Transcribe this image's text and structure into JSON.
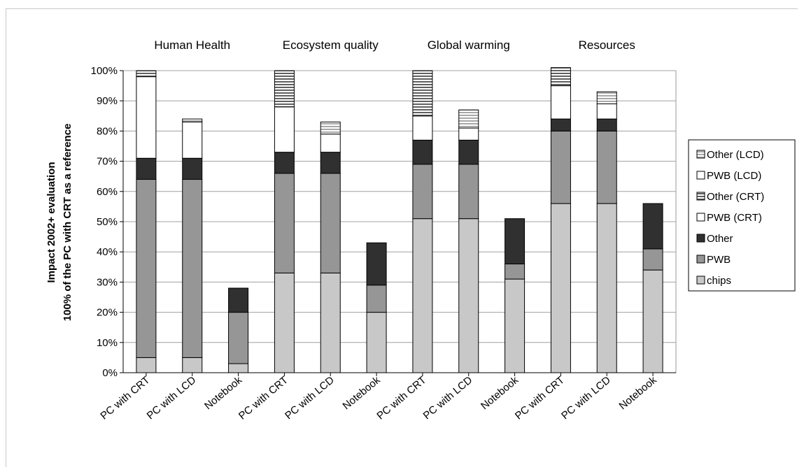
{
  "chart_data": {
    "type": "bar",
    "stacked": true,
    "title": "",
    "ylabel_line1": "Impact 2002+ evaluation",
    "ylabel_line2": "100% of the PC with CRT as a reference",
    "ylim": [
      0,
      100
    ],
    "yticks": [
      "0%",
      "10%",
      "20%",
      "30%",
      "40%",
      "50%",
      "60%",
      "70%",
      "80%",
      "90%",
      "100%"
    ],
    "grid": true,
    "legend_position": "right",
    "groups": [
      "Human Health",
      "Ecosystem quality",
      "Global warming",
      "Resources"
    ],
    "categories": [
      "PC with CRT",
      "PC with LCD",
      "Notebook",
      "PC with CRT",
      "PC with LCD",
      "Notebook",
      "PC with CRT",
      "PC with LCD",
      "Notebook",
      "PC with CRT",
      "PC with LCD",
      "Notebook"
    ],
    "series": [
      {
        "name": "chips",
        "color": "#c8c8c8",
        "values": [
          5,
          5,
          3,
          33,
          33,
          20,
          51,
          51,
          31,
          56,
          56,
          34
        ]
      },
      {
        "name": "PWB",
        "color": "#969696",
        "values": [
          59,
          59,
          17,
          33,
          33,
          9,
          18,
          18,
          5,
          24,
          24,
          7
        ]
      },
      {
        "name": "Other",
        "color": "#303030",
        "values": [
          7,
          7,
          8,
          7,
          7,
          14,
          8,
          8,
          15,
          4,
          4,
          15
        ]
      },
      {
        "name": "PWB (CRT)",
        "color": "#ffffff",
        "values": [
          27,
          0,
          0,
          15,
          0,
          0,
          8,
          0,
          0,
          11,
          0,
          0
        ]
      },
      {
        "name": "Other (CRT)",
        "color": "#808080",
        "pattern": "stripes",
        "values": [
          2,
          0,
          0,
          12,
          0,
          0,
          15,
          0,
          0,
          6,
          0,
          0
        ]
      },
      {
        "name": "PWB (LCD)",
        "color": "#ffffff",
        "values": [
          0,
          12,
          0,
          0,
          6,
          0,
          0,
          4,
          0,
          0,
          5,
          0
        ]
      },
      {
        "name": "Other (LCD)",
        "color": "#b4b4b4",
        "pattern": "stripes",
        "values": [
          0,
          1,
          0,
          0,
          4,
          0,
          0,
          6,
          0,
          0,
          4,
          0
        ]
      }
    ],
    "legend_order": [
      "Other (LCD)",
      "PWB (LCD)",
      "Other (CRT)",
      "PWB (CRT)",
      "Other",
      "PWB",
      "chips"
    ]
  }
}
